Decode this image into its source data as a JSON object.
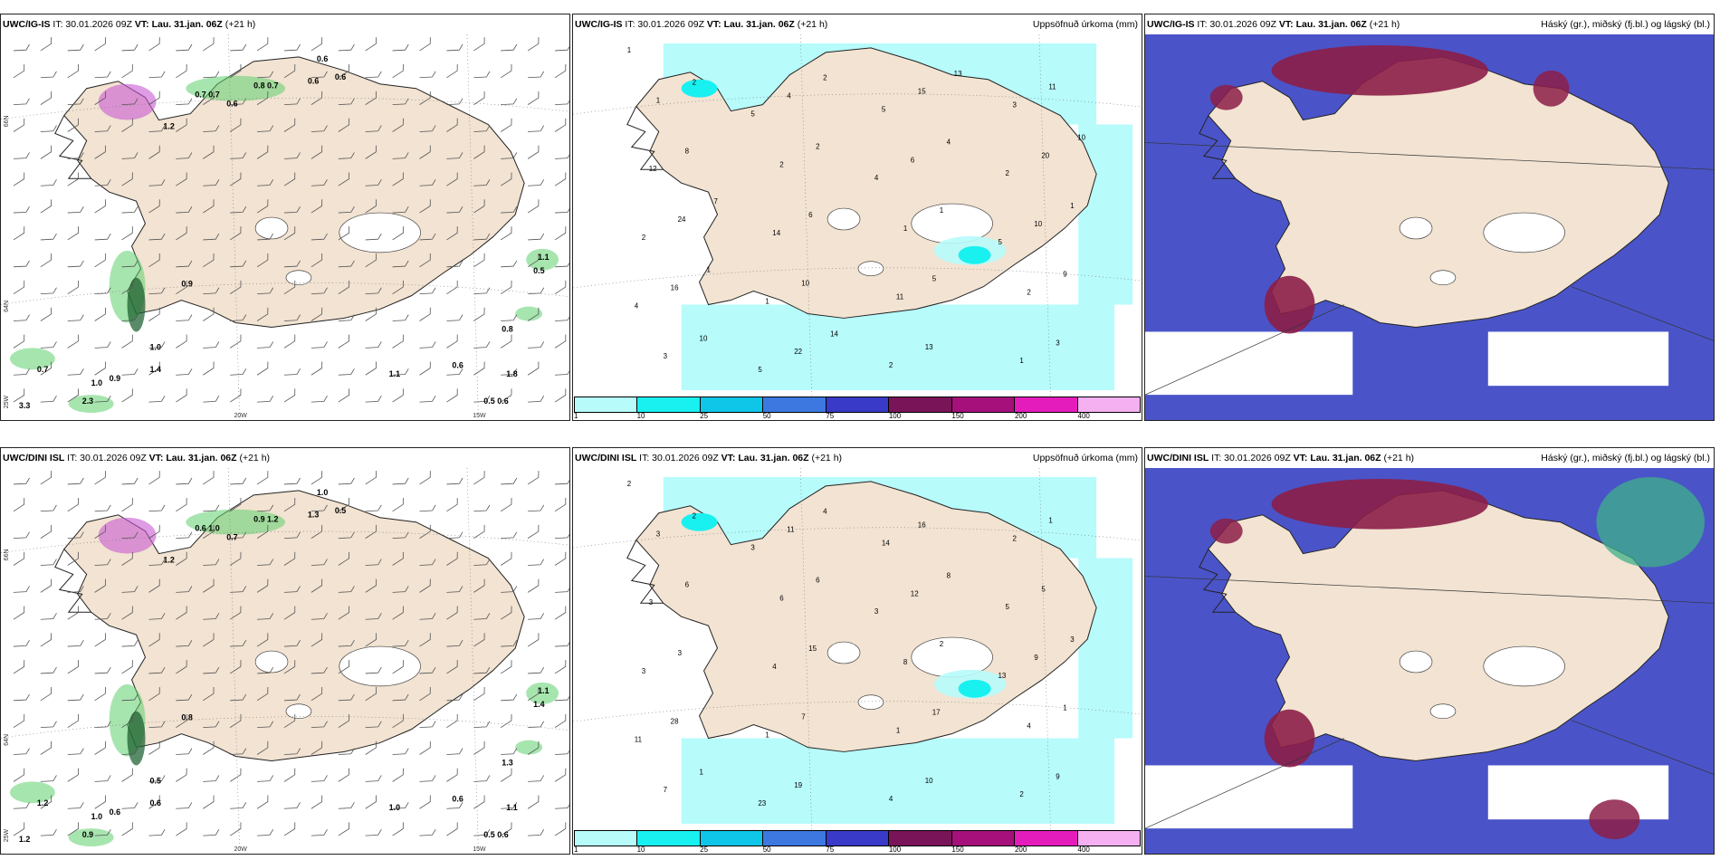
{
  "rows": [
    {
      "wind": {
        "model": "UWC/IG-IS",
        "it": "IT: 30.01.2026 09Z",
        "vt": "VT: Lau. 31.jan. 06Z",
        "lead": "(+21 h)",
        "right": ""
      },
      "precip": {
        "model": "UWC/IG-IS",
        "it": "IT: 30.01.2026 09Z",
        "vt": "VT: Lau. 31.jan. 06Z",
        "lead": "(+21 h)",
        "right": "Uppsöfnuð úrkoma (mm)"
      },
      "cloud": {
        "model": "UWC/IG-IS",
        "it": "IT: 30.01.2026 09Z",
        "vt": "VT: Lau. 31.jan. 06Z",
        "lead": "(+21 h)",
        "right": "Háský (gr.), miðský (fj.bl.) og lágský (bl.)"
      }
    },
    {
      "wind": {
        "model": "UWC/DINI ISL",
        "it": "IT: 30.01.2026 09Z",
        "vt": "VT: Lau. 31.jan. 06Z",
        "lead": "(+21 h)",
        "right": ""
      },
      "precip": {
        "model": "UWC/DINI ISL",
        "it": "IT: 30.01.2026 09Z",
        "vt": "VT: Lau. 31.jan. 06Z",
        "lead": "(+21 h)",
        "right": "Uppsöfnuð úrkoma (mm)"
      },
      "cloud": {
        "model": "UWC/DINI ISL",
        "it": "IT: 30.01.2026 09Z",
        "vt": "VT: Lau. 31.jan. 06Z",
        "lead": "(+21 h)",
        "right": "Háský (gr.), miðský (fj.bl.) og lágský (bl.)"
      }
    }
  ],
  "axis_labels": {
    "lat66": "66N",
    "lat64": "64N",
    "lon20": "20W",
    "lon15": "15W",
    "lon25": "25W"
  },
  "wind_labels_top": [
    "0.6",
    "0.7",
    "0.7",
    "0.8",
    "0.6",
    "1.2",
    "0.7",
    "0.6",
    "0.6",
    "1.1",
    "0.5",
    "0.8",
    "1.0",
    "0.7",
    "0.9",
    "1.0",
    "0.6",
    "2.3",
    "1.4",
    "3.3",
    "0.9",
    "1.1",
    "1.8",
    "0.6",
    "0.5"
  ],
  "wind_labels_bottom": [
    "1.0",
    "0.6",
    "1.0",
    "0.9",
    "0.5",
    "1.2",
    "1.2",
    "0.7",
    "1.3",
    "1.1",
    "1.4",
    "1.3",
    "1.0",
    "1.2",
    "0.6",
    "0.5",
    "0.6",
    "0.9",
    "0.6",
    "1.2",
    "0.8",
    "1.0",
    "1.1",
    "0.6",
    "0.5"
  ],
  "precip_labels_top": [
    "1",
    "5",
    "4",
    "5",
    "4",
    "5",
    "5",
    "2",
    "2",
    "1",
    "2",
    "3",
    "12",
    "14",
    "11",
    "1",
    "1",
    "2",
    "1",
    "2",
    "3",
    "4",
    "6",
    "10",
    "16",
    "22",
    "15",
    "20",
    "24",
    "10",
    "13",
    "11",
    "8",
    "6",
    "5",
    "3",
    "2",
    "2",
    "1",
    "9",
    "10",
    "2",
    "4",
    "1",
    "1",
    "14",
    "13",
    "10",
    "7"
  ],
  "precip_labels_bottom": [
    "2",
    "3",
    "3",
    "13",
    "11",
    "23",
    "14",
    "5",
    "3",
    "1",
    "4",
    "2",
    "3",
    "4",
    "1",
    "2",
    "3",
    "6",
    "8",
    "4",
    "7",
    "11",
    "12",
    "9",
    "28",
    "19",
    "16",
    "5",
    "3",
    "7",
    "10",
    "1",
    "6",
    "15",
    "17",
    "9",
    "2",
    "6",
    "2",
    "1",
    "1",
    "4",
    "8",
    "3"
  ],
  "colorbar": {
    "ticks": [
      "1",
      "10",
      "25",
      "50",
      "75",
      "100",
      "150",
      "200",
      "400",
      ""
    ],
    "colors": [
      "#b7fbfb",
      "#19f0f0",
      "#0fc6e8",
      "#3c78e0",
      "#3a3ac8",
      "#7a1458",
      "#a5107a",
      "#e51cbc",
      "#f4b0f0"
    ]
  },
  "colors": {
    "land": "#f2e3d2",
    "sea": "#ffffff",
    "precip_light": "#b7fbfb",
    "precip_mid": "#19f0f0",
    "cloud_low": "#4a54c8",
    "cloud_high": "#8c1e48",
    "cloud_mid": "#3fb08a",
    "wind_green": "#5fcf6e",
    "wind_dark": "#145a2a",
    "wind_purple": "#c85ad2"
  }
}
